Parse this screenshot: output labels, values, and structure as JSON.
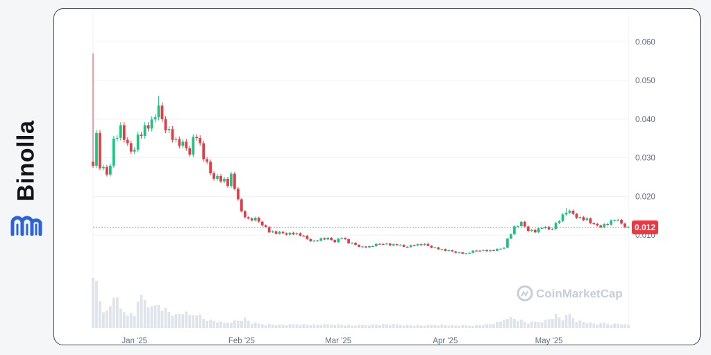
{
  "brand": {
    "name": "Binolla",
    "logo_icon": "binolla-logo-icon",
    "color": "#2a63e0"
  },
  "watermark": {
    "text": "CoinMarketCap",
    "icon": "coinmarketcap-logo-icon"
  },
  "current_price": {
    "label": "0.012",
    "color": "#ea3943"
  },
  "colors": {
    "up": "#16c784",
    "down": "#ea3943",
    "volume": "#dfe3ea",
    "grid": "#eff2f5"
  },
  "chart_data": {
    "type": "candlestick",
    "title": "",
    "xlabel": "",
    "ylabel": "",
    "y_ticks": [
      "0.010",
      "0.020",
      "0.030",
      "0.040",
      "0.050",
      "0.060"
    ],
    "y_tick_values": [
      0.01,
      0.02,
      0.03,
      0.04,
      0.05,
      0.06
    ],
    "ylim": [
      -0.014,
      0.0685
    ],
    "x_ticks": [
      {
        "label": "Jan '25",
        "day": 12
      },
      {
        "label": "Feb '25",
        "day": 43
      },
      {
        "label": "Mar '25",
        "day": 71
      },
      {
        "label": "Apr '25",
        "day": 102
      },
      {
        "label": "May '25",
        "day": 132
      }
    ],
    "x_range_days": [
      0,
      155
    ],
    "grid": true,
    "series_path": [
      [
        0,
        0.029
      ],
      [
        1,
        0.036
      ],
      [
        2,
        0.028
      ],
      [
        3,
        0.027
      ],
      [
        4,
        0.026
      ],
      [
        5,
        0.027
      ],
      [
        6,
        0.035
      ],
      [
        8,
        0.038
      ],
      [
        10,
        0.033
      ],
      [
        12,
        0.031
      ],
      [
        13,
        0.036
      ],
      [
        15,
        0.038
      ],
      [
        17,
        0.039
      ],
      [
        18,
        0.041
      ],
      [
        19,
        0.042
      ],
      [
        20,
        0.04
      ],
      [
        22,
        0.037
      ],
      [
        24,
        0.034
      ],
      [
        26,
        0.033
      ],
      [
        28,
        0.032
      ],
      [
        29,
        0.035
      ],
      [
        30,
        0.036
      ],
      [
        31,
        0.033
      ],
      [
        32,
        0.03
      ],
      [
        34,
        0.026
      ],
      [
        36,
        0.025
      ],
      [
        38,
        0.024
      ],
      [
        39,
        0.023
      ],
      [
        40,
        0.025
      ],
      [
        41,
        0.022
      ],
      [
        42,
        0.02
      ],
      [
        43,
        0.016
      ],
      [
        44,
        0.015
      ],
      [
        45,
        0.014
      ],
      [
        47,
        0.014
      ],
      [
        49,
        0.013
      ],
      [
        51,
        0.011
      ],
      [
        53,
        0.0105
      ],
      [
        56,
        0.0105
      ],
      [
        58,
        0.0105
      ],
      [
        60,
        0.01
      ],
      [
        62,
        0.009
      ],
      [
        64,
        0.0085
      ],
      [
        66,
        0.009
      ],
      [
        68,
        0.009
      ],
      [
        70,
        0.0085
      ],
      [
        72,
        0.0095
      ],
      [
        74,
        0.008
      ],
      [
        76,
        0.0075
      ],
      [
        78,
        0.007
      ],
      [
        80,
        0.007
      ],
      [
        82,
        0.0075
      ],
      [
        84,
        0.008
      ],
      [
        86,
        0.0075
      ],
      [
        88,
        0.0075
      ],
      [
        90,
        0.007
      ],
      [
        93,
        0.0075
      ],
      [
        96,
        0.0075
      ],
      [
        98,
        0.007
      ],
      [
        100,
        0.0065
      ],
      [
        102,
        0.006
      ],
      [
        104,
        0.0058
      ],
      [
        106,
        0.0055
      ],
      [
        108,
        0.0052
      ],
      [
        110,
        0.0058
      ],
      [
        112,
        0.0062
      ],
      [
        114,
        0.006
      ],
      [
        116,
        0.006
      ],
      [
        118,
        0.0065
      ],
      [
        119,
        0.007
      ],
      [
        120,
        0.009
      ],
      [
        122,
        0.012
      ],
      [
        124,
        0.013
      ],
      [
        126,
        0.0115
      ],
      [
        128,
        0.011
      ],
      [
        130,
        0.012
      ],
      [
        132,
        0.0115
      ],
      [
        133,
        0.012
      ],
      [
        135,
        0.014
      ],
      [
        137,
        0.016
      ],
      [
        139,
        0.0155
      ],
      [
        141,
        0.0145
      ],
      [
        143,
        0.014
      ],
      [
        145,
        0.0125
      ],
      [
        147,
        0.0125
      ],
      [
        149,
        0.013
      ],
      [
        151,
        0.014
      ],
      [
        153,
        0.013
      ],
      [
        155,
        0.012
      ]
    ],
    "spikes": [
      {
        "day": 0,
        "high": 0.057
      },
      {
        "day": 19,
        "high": 0.046
      },
      {
        "day": 137,
        "high": 0.017
      }
    ],
    "volume_path": [
      [
        0,
        1.0
      ],
      [
        1,
        0.7
      ],
      [
        2,
        0.45
      ],
      [
        3,
        0.3
      ],
      [
        4,
        0.25
      ],
      [
        5,
        0.35
      ],
      [
        6,
        0.55
      ],
      [
        8,
        0.3
      ],
      [
        10,
        0.25
      ],
      [
        12,
        0.2
      ],
      [
        13,
        0.5
      ],
      [
        15,
        0.45
      ],
      [
        17,
        0.3
      ],
      [
        19,
        0.4
      ],
      [
        21,
        0.3
      ],
      [
        24,
        0.2
      ],
      [
        26,
        0.25
      ],
      [
        28,
        0.2
      ],
      [
        30,
        0.25
      ],
      [
        32,
        0.15
      ],
      [
        34,
        0.12
      ],
      [
        36,
        0.1
      ],
      [
        38,
        0.08
      ],
      [
        40,
        0.1
      ],
      [
        42,
        0.12
      ],
      [
        44,
        0.15
      ],
      [
        46,
        0.08
      ],
      [
        50,
        0.06
      ],
      [
        55,
        0.05
      ],
      [
        60,
        0.06
      ],
      [
        65,
        0.05
      ],
      [
        70,
        0.06
      ],
      [
        75,
        0.04
      ],
      [
        80,
        0.05
      ],
      [
        85,
        0.06
      ],
      [
        90,
        0.05
      ],
      [
        95,
        0.04
      ],
      [
        100,
        0.05
      ],
      [
        105,
        0.04
      ],
      [
        110,
        0.04
      ],
      [
        115,
        0.06
      ],
      [
        118,
        0.1
      ],
      [
        120,
        0.18
      ],
      [
        122,
        0.15
      ],
      [
        124,
        0.12
      ],
      [
        126,
        0.08
      ],
      [
        128,
        0.1
      ],
      [
        131,
        0.12
      ],
      [
        134,
        0.2
      ],
      [
        136,
        0.14
      ],
      [
        138,
        0.22
      ],
      [
        140,
        0.12
      ],
      [
        142,
        0.1
      ],
      [
        144,
        0.08
      ],
      [
        146,
        0.06
      ],
      [
        148,
        0.08
      ],
      [
        150,
        0.06
      ],
      [
        152,
        0.07
      ],
      [
        155,
        0.05
      ]
    ],
    "current_value": 0.012
  }
}
